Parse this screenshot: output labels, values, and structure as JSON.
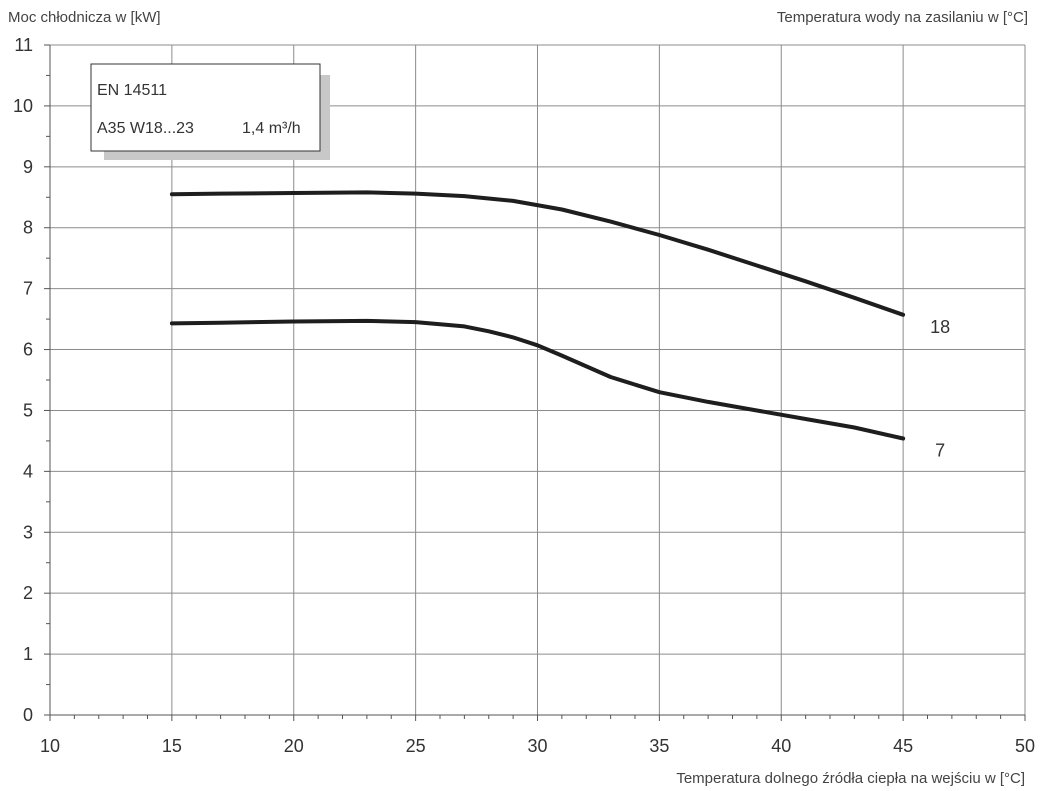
{
  "chart_data": {
    "type": "line",
    "ylabel": "Moc chłodnicza w [kW]",
    "xlabel": "Temperatura dolnego źródła ciepła na wejściu w [°C]",
    "series_title": "Temperatura wody na zasilaniu w [°C]",
    "xlim": [
      10,
      50
    ],
    "ylim": [
      0,
      11
    ],
    "x_ticks": [
      10,
      15,
      20,
      25,
      30,
      35,
      40,
      45,
      50
    ],
    "y_ticks": [
      0,
      1,
      2,
      3,
      4,
      5,
      6,
      7,
      8,
      9,
      10,
      11
    ],
    "x_minor_step": 1,
    "y_minor_step": 0.5,
    "grid": true,
    "legend_box": {
      "line1": "EN 14511",
      "line2a": "A35 W18...23",
      "line2b": "1,4 m³/h"
    },
    "series": [
      {
        "label": "18",
        "x": [
          15,
          17,
          20,
          23,
          25,
          27,
          29,
          31,
          33,
          35,
          37,
          39,
          41,
          43,
          45
        ],
        "y": [
          8.55,
          8.56,
          8.57,
          8.58,
          8.56,
          8.52,
          8.44,
          8.3,
          8.1,
          7.88,
          7.64,
          7.38,
          7.12,
          6.85,
          6.57
        ]
      },
      {
        "label": "7",
        "x": [
          15,
          17,
          20,
          23,
          25,
          27,
          28,
          29,
          30,
          31,
          33,
          35,
          37,
          39,
          41,
          43,
          45
        ],
        "y": [
          6.43,
          6.44,
          6.46,
          6.47,
          6.45,
          6.38,
          6.3,
          6.2,
          6.07,
          5.9,
          5.55,
          5.3,
          5.14,
          5.0,
          4.86,
          4.72,
          4.54
        ]
      }
    ],
    "colors": {
      "line": "#1e1e1e",
      "grid": "#8c8c8c",
      "axis": "#555555",
      "legend_shadow": "#c8c8c8"
    }
  }
}
